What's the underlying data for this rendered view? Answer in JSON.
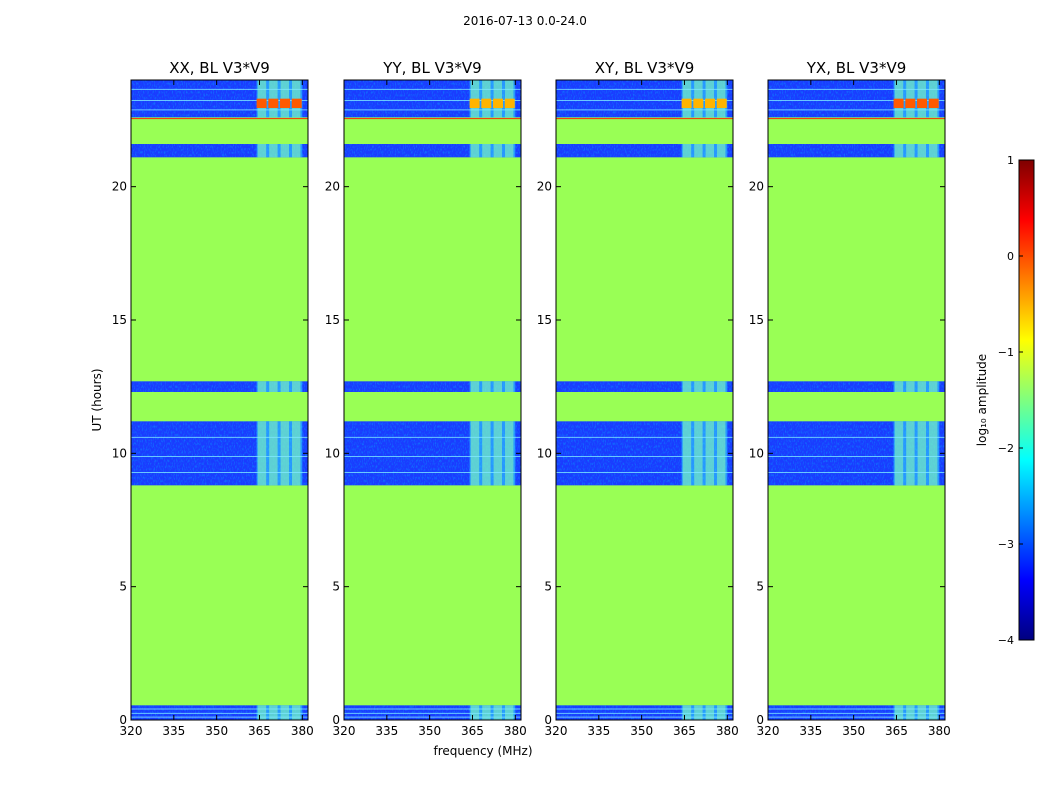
{
  "page_title": "2016-07-13 0.0-24.0",
  "chart_data": {
    "type": "heatmap",
    "title": "2016-07-13 0.0-24.0",
    "xlabel": "frequency (MHz)",
    "ylabel": "UT (hours)",
    "xlim": [
      320,
      382
    ],
    "ylim": [
      0,
      24
    ],
    "x_ticks": [
      320,
      335,
      350,
      365,
      380
    ],
    "x_tick_labels": [
      "320",
      "335",
      "350",
      "365",
      "380"
    ],
    "y_ticks": [
      0,
      5,
      10,
      15,
      20
    ],
    "y_tick_labels": [
      "0",
      "5",
      "10",
      "15",
      "20"
    ],
    "panels": [
      {
        "title": "XX, BL V3*V9",
        "polarization": "XX"
      },
      {
        "title": "YY, BL V3*V9",
        "polarization": "YY"
      },
      {
        "title": "XY, BL V3*V9",
        "polarization": "XY"
      },
      {
        "title": "YX, BL V3*V9",
        "polarization": "YX"
      }
    ],
    "colorbar": {
      "label": "log₁₀ amplitude",
      "range": [
        -4,
        1
      ],
      "ticks": [
        -4,
        -3,
        -2,
        -1,
        0,
        1
      ],
      "tick_labels": [
        "−4",
        "−3",
        "−2",
        "−1",
        "0",
        "1"
      ],
      "colormap": [
        "#00007f",
        "#0000ff",
        "#007fff",
        "#00ffff",
        "#7fff7f",
        "#ffff00",
        "#ff7f00",
        "#ff0000",
        "#7f0000"
      ]
    },
    "fill_value_color": "#99ff55",
    "data_time_ranges": [
      [
        0.0,
        0.55
      ],
      [
        8.8,
        11.2
      ],
      [
        12.3,
        12.7
      ],
      [
        21.1,
        21.6
      ],
      [
        22.6,
        24.0
      ]
    ],
    "rfi_band_mhz": [
      364,
      380
    ],
    "bright_rfi_hours": [
      22.95,
      23.3
    ]
  }
}
